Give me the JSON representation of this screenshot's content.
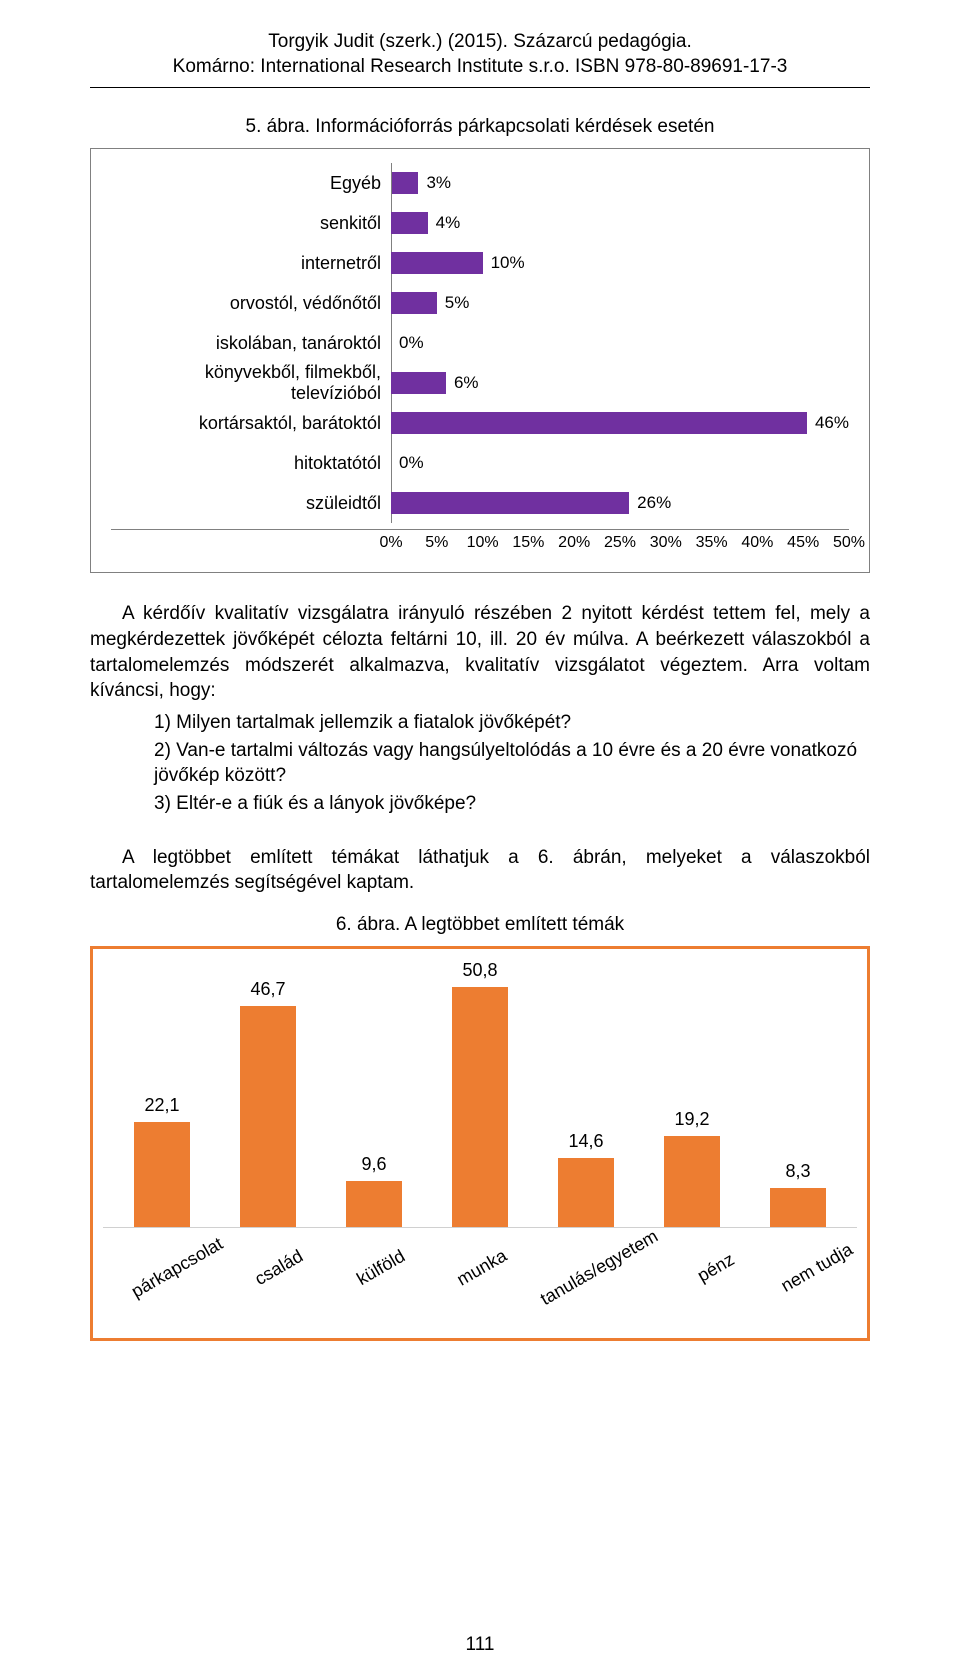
{
  "header": {
    "line1": "Torgyik Judit (szerk.) (2015). Százarcú pedagógia.",
    "line2": "Komárno: International Research Institute s.r.o. ISBN 978-80-89691-17-3"
  },
  "fig1": {
    "caption": "5. ábra. Információforrás párkapcsolati kérdések esetén",
    "type": "bar-horizontal",
    "bar_color": "#7030a0",
    "label_fontsize": 18,
    "value_fontsize": 17,
    "xlim": [
      0,
      50
    ],
    "xtick_step": 5,
    "xticks": [
      "0%",
      "5%",
      "10%",
      "15%",
      "20%",
      "25%",
      "30%",
      "35%",
      "40%",
      "45%",
      "50%"
    ],
    "categories": [
      {
        "label": "Egyéb",
        "value": 3,
        "display": "3%"
      },
      {
        "label": "senkitől",
        "value": 4,
        "display": "4%"
      },
      {
        "label": "internetről",
        "value": 10,
        "display": "10%"
      },
      {
        "label": "orvostól, védőnőtől",
        "value": 5,
        "display": "5%"
      },
      {
        "label": "iskolában, tanároktól",
        "value": 0,
        "display": "0%"
      },
      {
        "label": "könyvekből, filmekből, televízióból",
        "value": 6,
        "display": "6%"
      },
      {
        "label": "kortársaktól, barátoktól",
        "value": 46,
        "display": "46%"
      },
      {
        "label": "hitoktatótól",
        "value": 0,
        "display": "0%"
      },
      {
        "label": "szüleidtől",
        "value": 26,
        "display": "26%"
      }
    ]
  },
  "para1": "A kérdőív kvalitatív vizsgálatra irányuló részében 2 nyitott kérdést tettem fel, mely a megkérdezettek jövőképét célozta feltárni 10, ill. 20 év múlva. A beérkezett válaszokból a tartalomelemzés módszerét alkalmazva, kvalitatív vizsgálatot végeztem. Arra voltam kíváncsi, hogy:",
  "list": {
    "i1": "1) Milyen tartalmak jellemzik a fiatalok jövőképét?",
    "i2": "2) Van-e tartalmi változás vagy hangsúlyeltolódás a 10 évre és a 20 évre vonatkozó jövőkép között?",
    "i3": "3) Eltér-e a fiúk és a lányok jövőképe?"
  },
  "para2": "A legtöbbet említett témákat láthatjuk a 6. ábrán, melyeket a válaszokból tartalomelemzés segítségével kaptam.",
  "fig2": {
    "caption": "6. ábra. A legtöbbet említett témák",
    "type": "bar-vertical",
    "bar_color": "#ed7d31",
    "border_color": "#ed7d31",
    "label_fontsize": 18,
    "ylim": [
      0,
      55
    ],
    "categories": [
      {
        "label": "párkapcsolat",
        "value": 22.1,
        "display": "22,1"
      },
      {
        "label": "család",
        "value": 46.7,
        "display": "46,7"
      },
      {
        "label": "külföld",
        "value": 9.6,
        "display": "9,6"
      },
      {
        "label": "munka",
        "value": 50.8,
        "display": "50,8"
      },
      {
        "label": "tanulás/egyetem",
        "value": 14.6,
        "display": "14,6"
      },
      {
        "label": "pénz",
        "value": 19.2,
        "display": "19,2"
      },
      {
        "label": "nem tudja",
        "value": 8.3,
        "display": "8,3"
      }
    ]
  },
  "page_number": "111"
}
